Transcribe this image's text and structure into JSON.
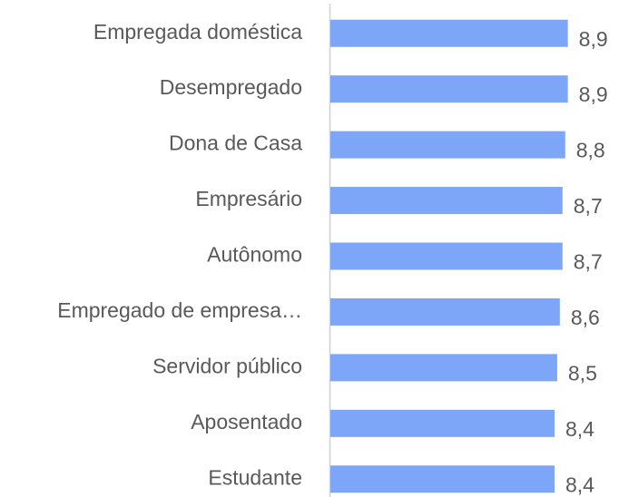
{
  "chart_data": {
    "type": "hbar",
    "categories": [
      "Empregada doméstica",
      "Desempregado",
      "Dona de Casa",
      "Empresário",
      "Autônomo",
      "Empregado de empresa…",
      "Servidor público",
      "Aposentado",
      "Estudante"
    ],
    "values": [
      8.9,
      8.9,
      8.8,
      8.7,
      8.7,
      8.6,
      8.5,
      8.4,
      8.4
    ],
    "value_labels": [
      "8,9",
      "8,9",
      "8,8",
      "8,7",
      "8,7",
      "8,6",
      "8,5",
      "8,4",
      "8,4"
    ],
    "color": "#7ea6f8",
    "xlim": [
      0,
      10
    ]
  }
}
